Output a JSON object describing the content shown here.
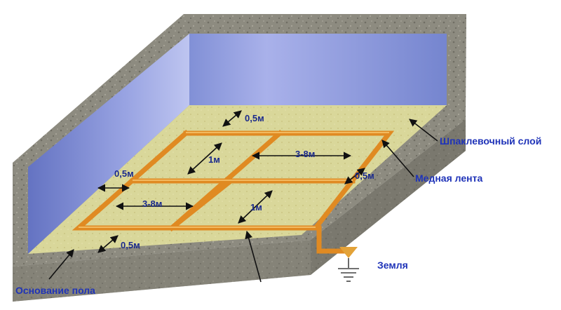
{
  "labels": {
    "putty_layer": "Шпаклевочный слой",
    "copper_tape": "Медная лента",
    "ground": "Земля",
    "floor_base": "Основание пола"
  },
  "dimensions": {
    "top_gap": "0,5м",
    "left_gap": "0,5м",
    "right_gap": "0,5м",
    "bottom_gap": "0,5м",
    "upper_cell": "1м",
    "lower_cell": "1м",
    "upper_span": "3-8м",
    "lower_span": "3-8м"
  },
  "colors": {
    "wall": "#7f8ed8",
    "floor": "#d9d79a",
    "concrete": "#8d8b80",
    "copper": "#e9962c",
    "label_text": "#1f33b8"
  },
  "icons": {
    "ground_symbol": "ground-icon"
  }
}
